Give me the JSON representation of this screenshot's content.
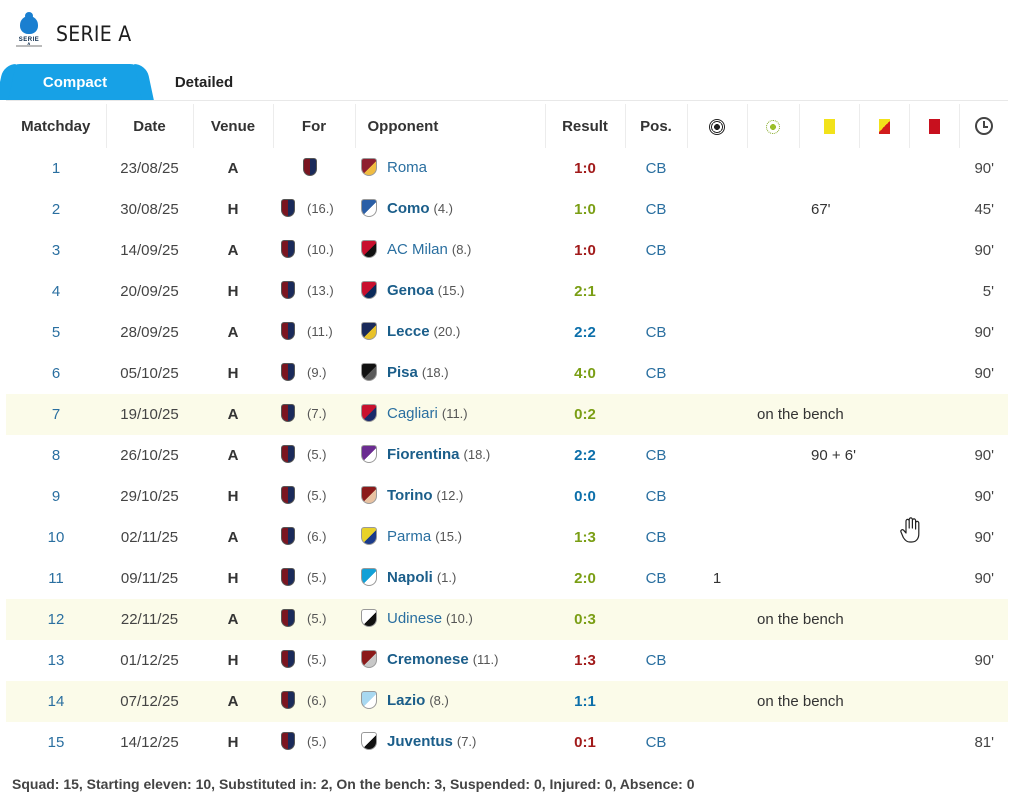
{
  "league": {
    "title": "SERIE A",
    "logo_text": "SERIE A",
    "logo_icon": "serie-a-logo"
  },
  "tabs": [
    {
      "label": "Compact",
      "active": true
    },
    {
      "label": "Detailed",
      "active": false
    }
  ],
  "columns": {
    "matchday": "Matchday",
    "date": "Date",
    "venue": "Venue",
    "for": "For",
    "opponent": "Opponent",
    "result": "Result",
    "pos": "Pos.",
    "goals_icon": "ball-icon",
    "assists_icon": "assist-icon",
    "yellow_icon": "yellow-card-icon",
    "yellowred_icon": "yellow-red-card-icon",
    "red_icon": "red-card-icon",
    "minutes_icon": "clock-icon"
  },
  "colors": {
    "accent": "#17a1e6",
    "bench_row": "#fbfbe9",
    "result_win": "#8b1414",
    "result_draw": "#8aa11a",
    "result_loss": "#0c6faa"
  },
  "matches": [
    {
      "md": "1",
      "date": "23/08/25",
      "venue": "A",
      "for_rank": "",
      "opponent": "Roma",
      "opp_rank": "",
      "result": "1:0",
      "result_type": "dark",
      "pos": "CB",
      "goals": "",
      "card_info": "",
      "minutes": "90'"
    },
    {
      "md": "2",
      "date": "30/08/25",
      "venue": "H",
      "for_rank": "(16.)",
      "opponent": "Como",
      "opp_rank": "(4.)",
      "result": "1:0",
      "result_type": "green",
      "pos": "CB",
      "goals": "",
      "card_info": "67'",
      "minutes": "45'"
    },
    {
      "md": "3",
      "date": "14/09/25",
      "venue": "A",
      "for_rank": "(10.)",
      "opponent": "AC Milan",
      "opp_rank": "(8.)",
      "result": "1:0",
      "result_type": "dark",
      "pos": "CB",
      "goals": "",
      "card_info": "",
      "minutes": "90'"
    },
    {
      "md": "4",
      "date": "20/09/25",
      "venue": "H",
      "for_rank": "(13.)",
      "opponent": "Genoa",
      "opp_rank": "(15.)",
      "result": "2:1",
      "result_type": "green",
      "pos": "",
      "goals": "",
      "card_info": "",
      "minutes": "5'"
    },
    {
      "md": "5",
      "date": "28/09/25",
      "venue": "A",
      "for_rank": "(11.)",
      "opponent": "Lecce",
      "opp_rank": "(20.)",
      "result": "2:2",
      "result_type": "loss",
      "pos": "CB",
      "goals": "",
      "card_info": "",
      "minutes": "90'"
    },
    {
      "md": "6",
      "date": "05/10/25",
      "venue": "H",
      "for_rank": "(9.)",
      "opponent": "Pisa",
      "opp_rank": "(18.)",
      "result": "4:0",
      "result_type": "green",
      "pos": "CB",
      "goals": "",
      "card_info": "",
      "minutes": "90'"
    },
    {
      "md": "7",
      "date": "19/10/25",
      "venue": "A",
      "for_rank": "(7.)",
      "opponent": "Cagliari",
      "opp_rank": "(11.)",
      "result": "0:2",
      "result_type": "green",
      "pos": "",
      "goals": "",
      "card_info": "on the bench",
      "minutes": ""
    },
    {
      "md": "8",
      "date": "26/10/25",
      "venue": "A",
      "for_rank": "(5.)",
      "opponent": "Fiorentina",
      "opp_rank": "(18.)",
      "result": "2:2",
      "result_type": "loss",
      "pos": "CB",
      "goals": "",
      "card_info": "90 + 6'",
      "minutes": "90'"
    },
    {
      "md": "9",
      "date": "29/10/25",
      "venue": "H",
      "for_rank": "(5.)",
      "opponent": "Torino",
      "opp_rank": "(12.)",
      "result": "0:0",
      "result_type": "loss",
      "pos": "CB",
      "goals": "",
      "card_info": "",
      "minutes": "90'"
    },
    {
      "md": "10",
      "date": "02/11/25",
      "venue": "A",
      "for_rank": "(6.)",
      "opponent": "Parma",
      "opp_rank": "(15.)",
      "result": "1:3",
      "result_type": "green",
      "pos": "CB",
      "goals": "",
      "card_info": "",
      "minutes": "90'"
    },
    {
      "md": "11",
      "date": "09/11/25",
      "venue": "H",
      "for_rank": "(5.)",
      "opponent": "Napoli",
      "opp_rank": "(1.)",
      "result": "2:0",
      "result_type": "green",
      "pos": "CB",
      "goals": "1",
      "card_info": "",
      "minutes": "90'"
    },
    {
      "md": "12",
      "date": "22/11/25",
      "venue": "A",
      "for_rank": "(5.)",
      "opponent": "Udinese",
      "opp_rank": "(10.)",
      "result": "0:3",
      "result_type": "green",
      "pos": "",
      "goals": "",
      "card_info": "on the bench",
      "minutes": ""
    },
    {
      "md": "13",
      "date": "01/12/25",
      "venue": "H",
      "for_rank": "(5.)",
      "opponent": "Cremonese",
      "opp_rank": "(11.)",
      "result": "1:3",
      "result_type": "dark",
      "pos": "CB",
      "goals": "",
      "card_info": "",
      "minutes": "90'"
    },
    {
      "md": "14",
      "date": "07/12/25",
      "venue": "A",
      "for_rank": "(6.)",
      "opponent": "Lazio",
      "opp_rank": "(8.)",
      "result": "1:1",
      "result_type": "loss",
      "pos": "",
      "goals": "",
      "card_info": "on the bench",
      "minutes": ""
    },
    {
      "md": "15",
      "date": "14/12/25",
      "venue": "H",
      "for_rank": "(5.)",
      "opponent": "Juventus",
      "opp_rank": "(7.)",
      "result": "0:1",
      "result_type": "dark",
      "pos": "CB",
      "goals": "",
      "card_info": "",
      "minutes": "81'"
    }
  ],
  "summary": "Squad: 15, Starting eleven: 10, Substituted in: 2, On the bench: 3, Suspended: 0, Injured: 0, Absence: 0"
}
